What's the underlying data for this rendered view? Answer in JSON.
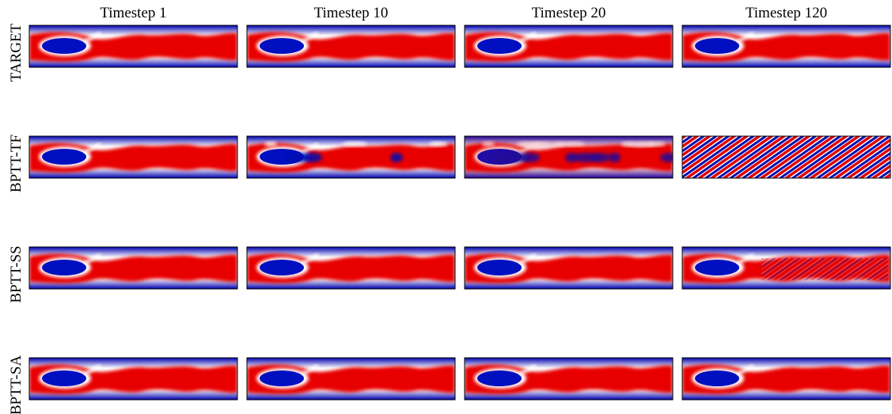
{
  "columns": [
    "Timestep 1",
    "Timestep 10",
    "Timestep 20",
    "Timestep 120"
  ],
  "rows": [
    "TARGET",
    "BPTT-TF",
    "BPTT-SS",
    "BPTT-SA"
  ]
}
